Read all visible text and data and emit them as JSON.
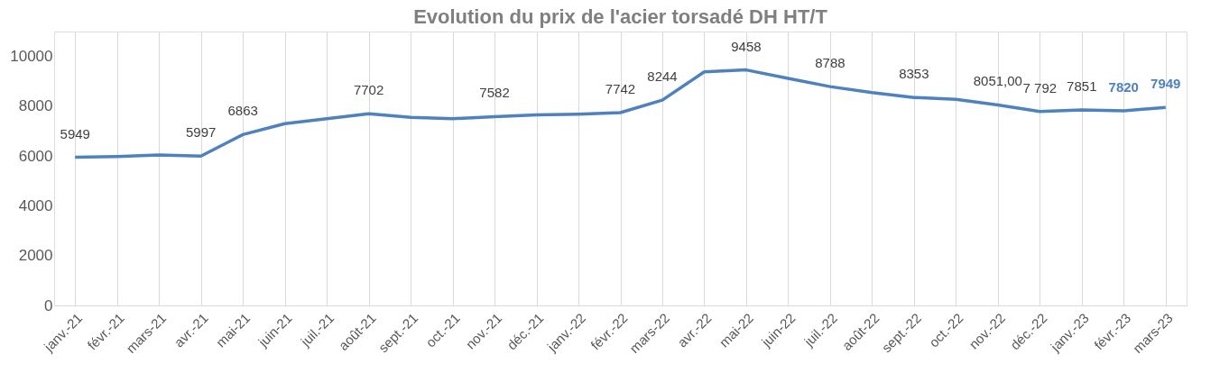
{
  "chart_data": {
    "type": "line",
    "title": "Evolution du prix de l'acier torsadé DH HT/T",
    "categories": [
      "janv.-21",
      "févr.-21",
      "mars-21",
      "avr.-21",
      "mai-21",
      "juin-21",
      "juil.-21",
      "août-21",
      "sept.-21",
      "oct.-21",
      "nov.-21",
      "déc.-21",
      "janv.-22",
      "févr.-22",
      "mars-22",
      "avr.-22",
      "mai-22",
      "juin-22",
      "juil.-22",
      "août-22",
      "sept.-22",
      "oct.-22",
      "nov.-22",
      "déc.-22",
      "janv.-23",
      "févr.-23",
      "mars-23"
    ],
    "series": [
      {
        "color": "#4f81bd",
        "values": [
          5949,
          5980,
          6040,
          5997,
          6863,
          7300,
          7500,
          7702,
          7550,
          7500,
          7582,
          7650,
          7680,
          7742,
          8244,
          9380,
          9458,
          9120,
          8788,
          8550,
          8353,
          8280,
          8051,
          7792,
          7851,
          7820,
          7949
        ],
        "value_labels": [
          "5949",
          null,
          null,
          "5997",
          "6863",
          null,
          null,
          "7702",
          null,
          null,
          "7582",
          null,
          null,
          "7742",
          "8244",
          null,
          "9458",
          null,
          "8788",
          null,
          "8353",
          null,
          "8051,00",
          "7 792",
          "7851",
          "7820",
          "7949"
        ]
      }
    ],
    "ylim": [
      0,
      11000
    ],
    "yticks": [
      0,
      2000,
      4000,
      6000,
      8000,
      10000
    ],
    "grid": "x",
    "marker": "none",
    "line_style": "solid"
  }
}
